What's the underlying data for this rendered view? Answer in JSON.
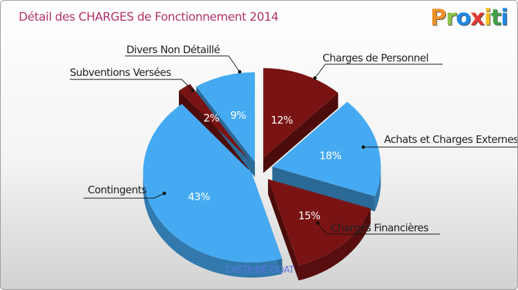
{
  "header": {
    "title": "Détail des CHARGES de Fonctionnement 2014"
  },
  "brand": {
    "letters": [
      {
        "ch": "P",
        "color": "#f0912a"
      },
      {
        "ch": "r",
        "color": "#8bc34a"
      },
      {
        "ch": "o",
        "color": "#1e88e5"
      },
      {
        "ch": "x",
        "color": "#e53935"
      },
      {
        "ch": "i",
        "color": "#f9c11e"
      },
      {
        "ch": "t",
        "color": "#43a047"
      },
      {
        "ch": "i",
        "color": "#1e88e5"
      }
    ]
  },
  "chart_data": {
    "type": "pie",
    "title": "Détail des CHARGES de Fonctionnement 2014",
    "subtitle": "CASTEIDE-DOAT",
    "slices": [
      {
        "label": "Charges de Personnel",
        "value": 12,
        "pct_label": "12%",
        "color": "#7a1414"
      },
      {
        "label": "Achats et Charges Externes",
        "value": 18,
        "pct_label": "18%",
        "color": "#45aaf2"
      },
      {
        "label": "Charges Financières",
        "value": 15,
        "pct_label": "15%",
        "color": "#7a1414"
      },
      {
        "label": "Contingents",
        "value": 43,
        "pct_label": "43%",
        "color": "#45aaf2"
      },
      {
        "label": "Subventions Versées",
        "value": 2,
        "pct_label": "2%",
        "color": "#7a1414"
      },
      {
        "label": "Divers Non Détaillé",
        "value": 9,
        "pct_label": "9%",
        "color": "#45aaf2"
      }
    ],
    "legend": "callouts"
  }
}
